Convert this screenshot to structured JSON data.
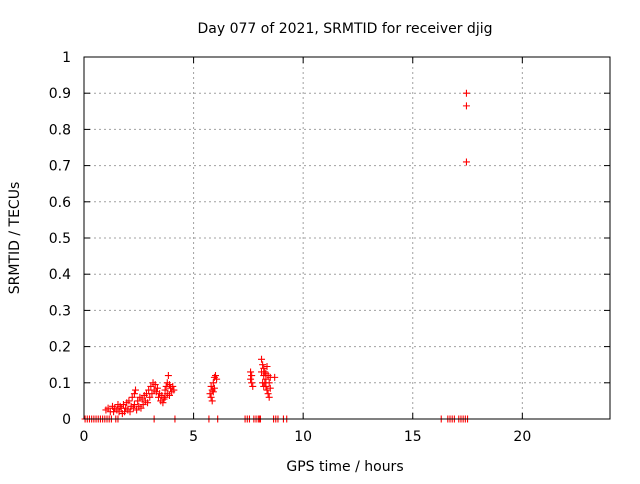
{
  "chart_data": {
    "type": "scatter",
    "title": "Day 077 of 2021, SRMTID for receiver djig",
    "xlabel": "GPS time / hours",
    "ylabel": "SRMTID / TECUs",
    "xlim": [
      0,
      24
    ],
    "ylim": [
      0,
      1
    ],
    "xticks": [
      0,
      5,
      10,
      15,
      20
    ],
    "yticks": [
      0,
      0.1,
      0.2,
      0.3,
      0.4,
      0.5,
      0.6,
      0.7,
      0.8,
      0.9,
      1
    ],
    "ytick_labels": [
      "0",
      "0.1",
      "0.2",
      "0.3",
      "0.4",
      "0.5",
      "0.6",
      "0.7",
      "0.8",
      "0.9",
      "1"
    ],
    "grid": true,
    "marker": "+",
    "marker_color": "#ff0000",
    "grid_color": "#a0a0a0",
    "series": [
      {
        "name": "SRMTID",
        "points": [
          [
            0.05,
            0
          ],
          [
            0.15,
            0
          ],
          [
            0.25,
            0
          ],
          [
            0.35,
            0
          ],
          [
            0.45,
            0
          ],
          [
            0.55,
            0
          ],
          [
            0.65,
            0
          ],
          [
            0.75,
            0
          ],
          [
            0.85,
            0
          ],
          [
            0.95,
            0
          ],
          [
            1.05,
            0
          ],
          [
            1.15,
            0
          ],
          [
            1.25,
            0
          ],
          [
            1.45,
            0
          ],
          [
            1.55,
            0
          ],
          [
            1.0,
            0.025
          ],
          [
            1.1,
            0.03
          ],
          [
            1.2,
            0.02
          ],
          [
            1.3,
            0.035
          ],
          [
            1.35,
            0.02
          ],
          [
            1.4,
            0.03
          ],
          [
            1.5,
            0.025
          ],
          [
            1.55,
            0.04
          ],
          [
            1.6,
            0.02
          ],
          [
            1.65,
            0.035
          ],
          [
            1.7,
            0.03
          ],
          [
            1.75,
            0.015
          ],
          [
            1.8,
            0.04
          ],
          [
            1.85,
            0.02
          ],
          [
            1.9,
            0.03
          ],
          [
            1.95,
            0.045
          ],
          [
            2.0,
            0.025
          ],
          [
            2.05,
            0.05
          ],
          [
            2.1,
            0.02
          ],
          [
            2.15,
            0.035
          ],
          [
            2.2,
            0.06
          ],
          [
            2.25,
            0.03
          ],
          [
            2.3,
            0.07
          ],
          [
            2.3,
            0.04
          ],
          [
            2.35,
            0.08
          ],
          [
            2.4,
            0.025
          ],
          [
            2.45,
            0.05
          ],
          [
            2.5,
            0.035
          ],
          [
            2.55,
            0.06
          ],
          [
            2.6,
            0.03
          ],
          [
            2.65,
            0.055
          ],
          [
            2.7,
            0.04
          ],
          [
            2.75,
            0.065
          ],
          [
            2.8,
            0.05
          ],
          [
            2.85,
            0.07
          ],
          [
            2.9,
            0.045
          ],
          [
            2.95,
            0.08
          ],
          [
            3.0,
            0.06
          ],
          [
            3.05,
            0.09
          ],
          [
            3.1,
            0.07
          ],
          [
            3.15,
            0.1
          ],
          [
            3.2,
            0.08
          ],
          [
            3.25,
            0.095
          ],
          [
            3.3,
            0.075
          ],
          [
            3.35,
            0.085
          ],
          [
            3.4,
            0.06
          ],
          [
            3.45,
            0.07
          ],
          [
            3.5,
            0.05
          ],
          [
            3.55,
            0.065
          ],
          [
            3.6,
            0.045
          ],
          [
            3.65,
            0.055
          ],
          [
            3.7,
            0.08
          ],
          [
            3.75,
            0.09
          ],
          [
            3.8,
            0.1
          ],
          [
            3.85,
            0.12
          ],
          [
            3.9,
            0.095
          ],
          [
            3.95,
            0.085
          ],
          [
            4.0,
            0.075
          ],
          [
            4.05,
            0.09
          ],
          [
            4.1,
            0.08
          ],
          [
            3.7,
            0.06
          ],
          [
            3.8,
            0.07
          ],
          [
            3.9,
            0.065
          ],
          [
            3.2,
            0
          ],
          [
            4.15,
            0
          ],
          [
            5.7,
            0
          ],
          [
            5.75,
            0.07
          ],
          [
            5.8,
            0.09
          ],
          [
            5.85,
            0.08
          ],
          [
            5.9,
            0.1
          ],
          [
            5.95,
            0.115
          ],
          [
            6.0,
            0.12
          ],
          [
            5.8,
            0.06
          ],
          [
            5.85,
            0.05
          ],
          [
            5.9,
            0.075
          ],
          [
            5.95,
            0.085
          ],
          [
            6.05,
            0.11
          ],
          [
            6.1,
            0
          ],
          [
            7.35,
            0
          ],
          [
            7.45,
            0
          ],
          [
            7.55,
            0
          ],
          [
            7.6,
            0.13
          ],
          [
            7.6,
            0.11
          ],
          [
            7.65,
            0.1
          ],
          [
            7.65,
            0.12
          ],
          [
            7.7,
            0.09
          ],
          [
            7.75,
            0
          ],
          [
            7.85,
            0
          ],
          [
            7.95,
            0
          ],
          [
            8.1,
            0.165
          ],
          [
            8.15,
            0.15
          ],
          [
            8.2,
            0.14
          ],
          [
            8.2,
            0.12
          ],
          [
            8.25,
            0.13
          ],
          [
            8.25,
            0.1
          ],
          [
            8.3,
            0.11
          ],
          [
            8.3,
            0.09
          ],
          [
            8.35,
            0.145
          ],
          [
            8.35,
            0.08
          ],
          [
            8.4,
            0.12
          ],
          [
            8.4,
            0.07
          ],
          [
            8.45,
            0.1
          ],
          [
            8.45,
            0.06
          ],
          [
            8.5,
            0.085
          ],
          [
            8.5,
            0.115
          ],
          [
            8.1,
            0.13
          ],
          [
            8.15,
            0.1
          ],
          [
            8.2,
            0.09
          ],
          [
            8.3,
            0.125
          ],
          [
            8.0,
            0
          ],
          [
            8.05,
            0
          ],
          [
            8.65,
            0
          ],
          [
            8.75,
            0
          ],
          [
            8.7,
            0.115
          ],
          [
            8.85,
            0
          ],
          [
            9.1,
            0
          ],
          [
            9.25,
            0
          ],
          [
            16.3,
            0
          ],
          [
            16.6,
            0
          ],
          [
            16.7,
            0
          ],
          [
            16.8,
            0
          ],
          [
            16.9,
            0
          ],
          [
            17.1,
            0
          ],
          [
            17.2,
            0
          ],
          [
            17.3,
            0
          ],
          [
            17.4,
            0
          ],
          [
            17.5,
            0
          ],
          [
            17.45,
            0.9
          ],
          [
            17.45,
            0.865
          ],
          [
            17.45,
            0.71
          ]
        ]
      }
    ]
  }
}
